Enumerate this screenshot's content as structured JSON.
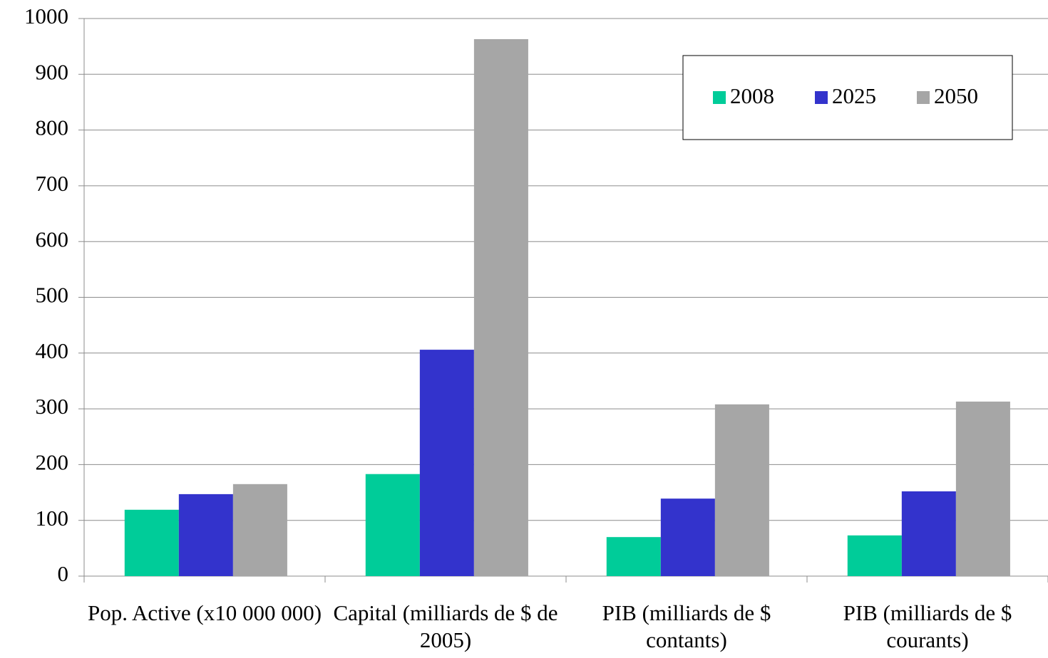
{
  "chart_data": {
    "type": "bar",
    "categories": [
      "Pop. Active (x10 000 000)",
      "Capital (milliards de $ de 2005)",
      "PIB (milliards de $ contants)",
      "PIB (milliards de $ courants)"
    ],
    "series": [
      {
        "name": "2008",
        "color": "#00cc99",
        "values": [
          119,
          183,
          70,
          73
        ]
      },
      {
        "name": "2025",
        "color": "#3333cc",
        "values": [
          147,
          406,
          139,
          152
        ]
      },
      {
        "name": "2050",
        "color": "#a6a6a6",
        "values": [
          165,
          963,
          308,
          313
        ]
      }
    ],
    "ylim": [
      0,
      1000
    ],
    "yticks": [
      0,
      100,
      200,
      300,
      400,
      500,
      600,
      700,
      800,
      900,
      1000
    ],
    "grid": true,
    "legend": "top-right"
  }
}
